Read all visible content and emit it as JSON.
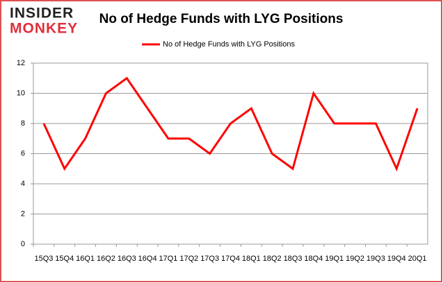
{
  "logo": {
    "line1": "INSIDER",
    "line2": "MONKEY"
  },
  "chart_data": {
    "type": "line",
    "title": "No of Hedge Funds with LYG Positions",
    "categories": [
      "15Q3",
      "15Q4",
      "16Q1",
      "16Q2",
      "16Q3",
      "16Q4",
      "17Q1",
      "17Q2",
      "17Q3",
      "17Q4",
      "18Q1",
      "18Q2",
      "18Q3",
      "18Q4",
      "19Q1",
      "19Q2",
      "19Q3",
      "19Q4",
      "20Q1"
    ],
    "series": [
      {
        "name": "No of Hedge Funds with LYG Positions",
        "color": "#ff0000",
        "values": [
          8,
          5,
          7,
          10,
          11,
          9,
          7,
          7,
          6,
          8,
          9,
          6,
          5,
          10,
          8,
          8,
          8,
          5,
          9
        ]
      }
    ],
    "ylim": [
      0,
      12
    ],
    "yticks": [
      0,
      2,
      4,
      6,
      8,
      10,
      12
    ],
    "grid": true,
    "legend": "top"
  }
}
